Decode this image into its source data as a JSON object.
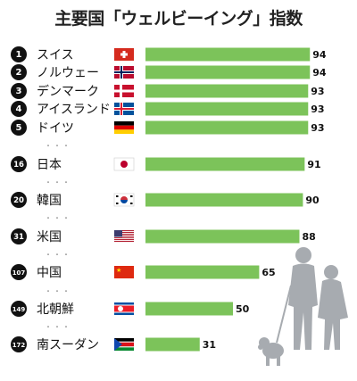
{
  "chart_data": {
    "type": "bar",
    "title": "主要国「ウェルビーイング」指数",
    "orientation": "horizontal",
    "xlim": [
      0,
      100
    ],
    "grid": false,
    "legend": "none",
    "bar_color": "#7cc35a",
    "rank_color": "#111111",
    "gap_symbol": "・・・",
    "rows": [
      {
        "rank": "1",
        "country": "スイス",
        "flag": "switzerland-flag",
        "value": 94
      },
      {
        "rank": "2",
        "country": "ノルウェー",
        "flag": "norway-flag",
        "value": 94
      },
      {
        "rank": "3",
        "country": "デンマーク",
        "flag": "denmark-flag",
        "value": 93
      },
      {
        "rank": "4",
        "country": "アイスランド",
        "flag": "iceland-flag",
        "value": 93
      },
      {
        "rank": "5",
        "country": "ドイツ",
        "flag": "germany-flag",
        "value": 93
      },
      {
        "rank": "16",
        "country": "日本",
        "flag": "japan-flag",
        "value": 91
      },
      {
        "rank": "20",
        "country": "韓国",
        "flag": "south-korea-flag",
        "value": 90
      },
      {
        "rank": "31",
        "country": "米国",
        "flag": "usa-flag",
        "value": 88
      },
      {
        "rank": "107",
        "country": "中国",
        "flag": "china-flag",
        "value": 65
      },
      {
        "rank": "149",
        "country": "北朝鮮",
        "flag": "north-korea-flag",
        "value": 50
      },
      {
        "rank": "172",
        "country": "南スーダン",
        "flag": "south-sudan-flag",
        "value": 31
      }
    ]
  }
}
